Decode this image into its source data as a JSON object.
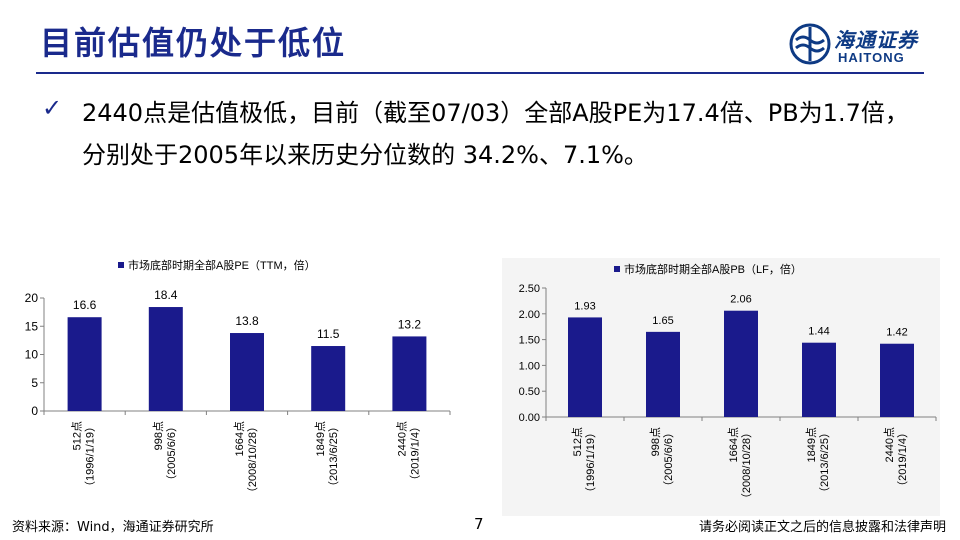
{
  "header": {
    "title": "目前估值仍处于低位",
    "logo_cn": "海通证券",
    "logo_en": "HAITONG",
    "accent_color": "#1a2a8c"
  },
  "bullet": {
    "icon": "check-icon",
    "text": "2440点是估值极低，目前（截至07/03）全部A股PE为17.4倍、PB为1.7倍，分别处于2005年以来历史分位数的 34.2%、7.1%。"
  },
  "chart_data": [
    {
      "type": "bar",
      "legend": "市场底部时期全部A股PE（TTM，倍）",
      "categories": [
        "512点（1996/1/19）",
        "998点（2005/6/6）",
        "1664点（2008/10/28）",
        "1849点（2013/6/25）",
        "2440点（2019/1/4）"
      ],
      "category_lines": [
        [
          "512点",
          "（1996/1/19）"
        ],
        [
          "998点",
          "（2005/6/6）"
        ],
        [
          "1664点",
          "（2008/10/28）"
        ],
        [
          "1849点",
          "（2013/6/25）"
        ],
        [
          "2440点",
          "（2019/1/4）"
        ]
      ],
      "values": [
        16.6,
        18.4,
        13.8,
        11.5,
        13.2
      ],
      "value_labels": [
        "16.6",
        "18.4",
        "13.8",
        "11.5",
        "13.2"
      ],
      "ylim": [
        0,
        20
      ],
      "yticks": [
        "0",
        "5",
        "10",
        "15",
        "20"
      ],
      "color": "#1a1a8c",
      "legend_placement": "top-left",
      "grid": false
    },
    {
      "type": "bar",
      "legend": "市场底部时期全部A股PB（LF，倍）",
      "categories": [
        "512点（1996/1/19）",
        "998点（2005/6/6）",
        "1664点（2008/10/28）",
        "1849点（2013/6/25）",
        "2440点（2019/1/4）"
      ],
      "category_lines": [
        [
          "512点",
          "（1996/1/19）"
        ],
        [
          "998点",
          "（2005/6/6）"
        ],
        [
          "1664点",
          "（2008/10/28）"
        ],
        [
          "1849点",
          "（2013/6/25）"
        ],
        [
          "2440点",
          "（2019/1/4）"
        ]
      ],
      "values": [
        1.93,
        1.65,
        2.06,
        1.44,
        1.42
      ],
      "value_labels": [
        "1.93",
        "1.65",
        "2.06",
        "1.44",
        "1.42"
      ],
      "ylim": [
        0,
        2.5
      ],
      "yticks": [
        "0.00",
        "0.50",
        "1.00",
        "1.50",
        "2.00",
        "2.50"
      ],
      "color": "#1a1a8c",
      "legend_placement": "top-left",
      "grid": false
    }
  ],
  "footer": {
    "source": "资料来源：Wind，海通证券研究所",
    "page_number": "7",
    "disclaimer": "请务必阅读正文之后的信息披露和法律声明"
  }
}
